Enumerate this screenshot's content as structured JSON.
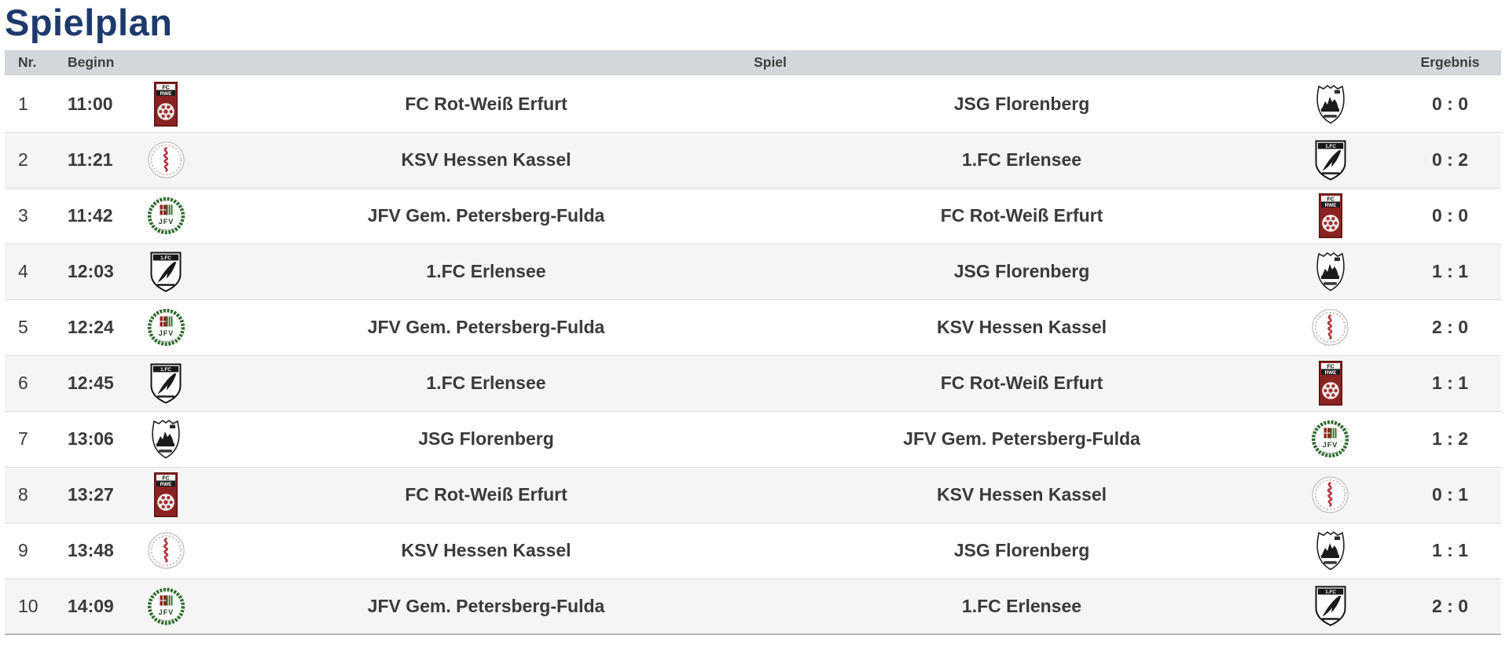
{
  "page": {
    "title": "Spielplan"
  },
  "colors": {
    "title": "#1e3a6d",
    "header_bg": "#d3d7dc",
    "header_text": "#3e3e3e",
    "row_text": "#3a3a3a",
    "row_alt_bg": "#f5f5f5"
  },
  "table": {
    "headers": {
      "nr": "Nr.",
      "beginn": "Beginn",
      "spiel": "Spiel",
      "ergebnis": "Ergebnis"
    },
    "logo_names": {
      "fc-rot-weiss-erfurt": "FC Rot-Weiß Erfurt badge",
      "ksv-hessen-kassel": "KSV Hessen Kassel badge",
      "jfv-petersberg-fulda": "JFV Gem. Petersberg-Fulda badge",
      "fc-erlensee": "1.FC Erlensee badge",
      "jsg-florenberg": "JSG Florenberg badge"
    },
    "rows": [
      {
        "nr": "1",
        "time": "11:00",
        "home": "FC Rot-Weiß Erfurt",
        "home_logo": "fc-rot-weiss-erfurt",
        "away": "JSG Florenberg",
        "away_logo": "jsg-florenberg",
        "score": "0 : 0"
      },
      {
        "nr": "2",
        "time": "11:21",
        "home": "KSV Hessen Kassel",
        "home_logo": "ksv-hessen-kassel",
        "away": "1.FC Erlensee",
        "away_logo": "fc-erlensee",
        "score": "0 : 2"
      },
      {
        "nr": "3",
        "time": "11:42",
        "home": "JFV Gem. Petersberg-Fulda",
        "home_logo": "jfv-petersberg-fulda",
        "away": "FC Rot-Weiß Erfurt",
        "away_logo": "fc-rot-weiss-erfurt",
        "score": "0 : 0"
      },
      {
        "nr": "4",
        "time": "12:03",
        "home": "1.FC Erlensee",
        "home_logo": "fc-erlensee",
        "away": "JSG Florenberg",
        "away_logo": "jsg-florenberg",
        "score": "1 : 1"
      },
      {
        "nr": "5",
        "time": "12:24",
        "home": "JFV Gem. Petersberg-Fulda",
        "home_logo": "jfv-petersberg-fulda",
        "away": "KSV Hessen Kassel",
        "away_logo": "ksv-hessen-kassel",
        "score": "2 : 0"
      },
      {
        "nr": "6",
        "time": "12:45",
        "home": "1.FC Erlensee",
        "home_logo": "fc-erlensee",
        "away": "FC Rot-Weiß Erfurt",
        "away_logo": "fc-rot-weiss-erfurt",
        "score": "1 : 1"
      },
      {
        "nr": "7",
        "time": "13:06",
        "home": "JSG Florenberg",
        "home_logo": "jsg-florenberg",
        "away": "JFV Gem. Petersberg-Fulda",
        "away_logo": "jfv-petersberg-fulda",
        "score": "1 : 2"
      },
      {
        "nr": "8",
        "time": "13:27",
        "home": "FC Rot-Weiß Erfurt",
        "home_logo": "fc-rot-weiss-erfurt",
        "away": "KSV Hessen Kassel",
        "away_logo": "ksv-hessen-kassel",
        "score": "0 : 1"
      },
      {
        "nr": "9",
        "time": "13:48",
        "home": "KSV Hessen Kassel",
        "home_logo": "ksv-hessen-kassel",
        "away": "JSG Florenberg",
        "away_logo": "jsg-florenberg",
        "score": "1 : 1"
      },
      {
        "nr": "10",
        "time": "14:09",
        "home": "JFV Gem. Petersberg-Fulda",
        "home_logo": "jfv-petersberg-fulda",
        "away": "1.FC Erlensee",
        "away_logo": "fc-erlensee",
        "score": "2 : 0"
      }
    ]
  }
}
